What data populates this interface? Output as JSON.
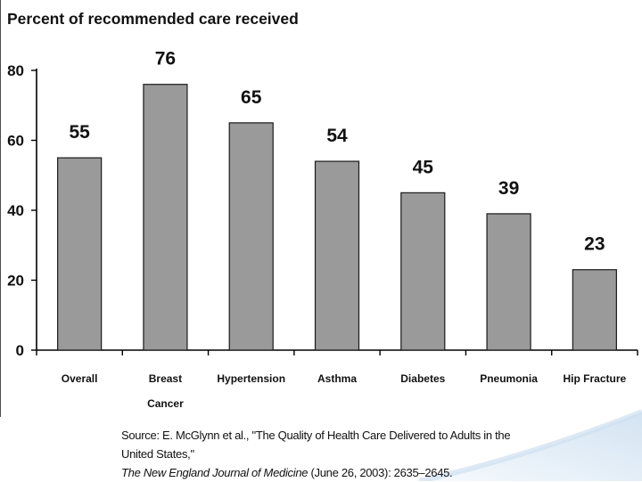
{
  "chart_data": {
    "type": "bar",
    "title": "Percent of recommended care received",
    "categories": [
      "Overall",
      "Breast Cancer",
      "Hypertension",
      "Asthma",
      "Diabetes",
      "Pneumonia",
      "Hip Fracture"
    ],
    "category_lines": [
      [
        "Overall"
      ],
      [
        "Breast",
        "Cancer"
      ],
      [
        "Hypertension"
      ],
      [
        "Asthma"
      ],
      [
        "Diabetes"
      ],
      [
        "Pneumonia"
      ],
      [
        "Hip Fracture"
      ]
    ],
    "values": [
      55,
      76,
      65,
      54,
      45,
      39,
      23
    ],
    "data_labels": [
      "55",
      "76",
      "65",
      "54",
      "45",
      "39",
      "23"
    ],
    "yticks": [
      0,
      20,
      40,
      60,
      80
    ],
    "ylim": [
      0,
      80
    ],
    "xlabel": "",
    "ylabel": "",
    "grid": false,
    "legend": "none",
    "bar_color": "#9a9a9a"
  },
  "source": {
    "line1": "Source: E. McGlynn et al., \"The Quality of Health Care Delivered to Adults in the United States,\"",
    "journal": "The New England Journal of Medicine",
    "line2_rest": " (June 26, 2003): 2635–2645."
  },
  "colors": {
    "decor_gradient_light": "#f6fafd",
    "decor_gradient_mid": "#d3e3f2"
  }
}
